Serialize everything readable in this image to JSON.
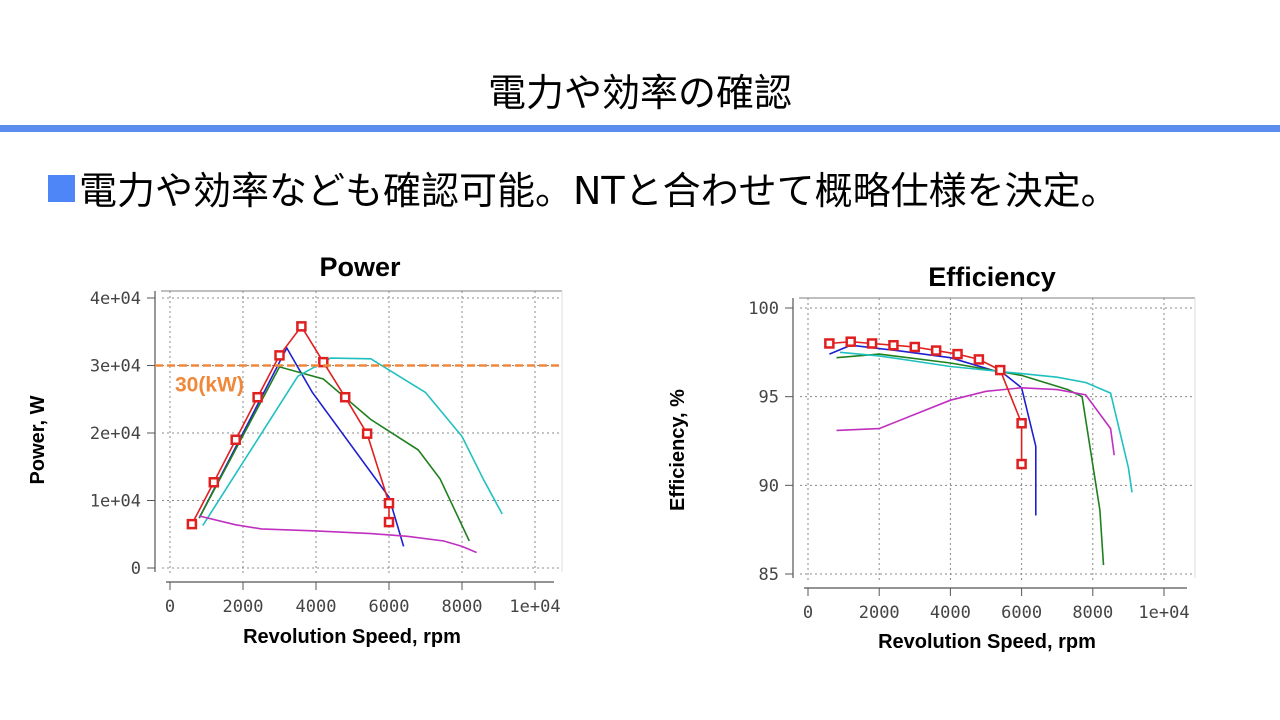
{
  "slide": {
    "title": "電力や効率の確認",
    "bullet": "電力や効率なども確認可能。NTと合わせて概略仕様を決定。"
  },
  "colors": {
    "accent_bar": "#5b8def",
    "bullet_square": "#4f86f7",
    "threshold": "#f0883a"
  },
  "chart_data": [
    {
      "type": "line",
      "title": "Power",
      "xlabel": "Revolution Speed, rpm",
      "ylabel": "Power, W",
      "xlim": [
        0,
        10000
      ],
      "ylim": [
        0,
        40000
      ],
      "xticks": [
        "0",
        "2000",
        "4000",
        "6000",
        "8000",
        "1e+04"
      ],
      "yticks": [
        "0",
        "1e+04",
        "2e+04",
        "3e+04",
        "4e+04"
      ],
      "grid": true,
      "annotation": {
        "y": 30000,
        "label": "30(kW)",
        "color": "#f0883a"
      },
      "series": [
        {
          "color": "#e02020",
          "markers": true,
          "x": [
            600,
            1200,
            1800,
            2400,
            3000,
            3600,
            4200,
            4800,
            5400,
            6000,
            6000
          ],
          "y": [
            6500,
            12700,
            19000,
            25300,
            31500,
            35800,
            30500,
            25300,
            19900,
            9600,
            6800
          ]
        },
        {
          "color": "#2020d0",
          "markers": false,
          "x": [
            800,
            3200,
            3900,
            6000,
            6400
          ],
          "y": [
            7400,
            32600,
            26000,
            10500,
            3200
          ]
        },
        {
          "color": "#208020",
          "markers": false,
          "x": [
            800,
            3000,
            4200,
            5500,
            6800,
            7400,
            8200
          ],
          "y": [
            7400,
            29800,
            28000,
            22000,
            17500,
            13200,
            4000
          ]
        },
        {
          "color": "#20c0c0",
          "markers": false,
          "x": [
            900,
            3500,
            4400,
            5500,
            7000,
            8000,
            8600,
            9100
          ],
          "y": [
            6300,
            28400,
            31100,
            31000,
            26000,
            19500,
            13000,
            8000
          ]
        },
        {
          "color": "#c030c0",
          "markers": false,
          "x": [
            800,
            1800,
            2500,
            4000,
            5500,
            6500,
            7500,
            8000,
            8400
          ],
          "y": [
            7700,
            6400,
            5800,
            5500,
            5100,
            4700,
            4000,
            3200,
            2300
          ]
        }
      ]
    },
    {
      "type": "line",
      "title": "Efficiency",
      "xlabel": "Revolution Speed, rpm",
      "ylabel": "Efficiency, %",
      "xlim": [
        0,
        10000
      ],
      "ylim": [
        85,
        100
      ],
      "xticks": [
        "0",
        "2000",
        "4000",
        "6000",
        "8000",
        "1e+04"
      ],
      "yticks": [
        "85",
        "90",
        "95",
        "100"
      ],
      "grid": true,
      "series": [
        {
          "color": "#e02020",
          "markers": true,
          "x": [
            600,
            1200,
            1800,
            2400,
            3000,
            3600,
            4200,
            4800,
            5400,
            6000,
            6000
          ],
          "y": [
            98.0,
            98.1,
            98.0,
            97.9,
            97.8,
            97.6,
            97.4,
            97.1,
            96.5,
            93.5,
            91.2
          ]
        },
        {
          "color": "#2020d0",
          "markers": false,
          "x": [
            600,
            1200,
            2500,
            4000,
            5500,
            6000,
            6400,
            6400
          ],
          "y": [
            97.4,
            97.9,
            97.6,
            97.2,
            96.3,
            95.5,
            92.2,
            88.3
          ]
        },
        {
          "color": "#208020",
          "markers": false,
          "x": [
            800,
            2000,
            4000,
            6000,
            7300,
            7700,
            8200,
            8300
          ],
          "y": [
            97.2,
            97.4,
            96.9,
            96.2,
            95.4,
            95.0,
            88.6,
            85.5
          ]
        },
        {
          "color": "#20c0c0",
          "markers": false,
          "x": [
            900,
            2000,
            4000,
            6000,
            7000,
            7800,
            8500,
            9000,
            9100
          ],
          "y": [
            97.5,
            97.3,
            96.7,
            96.3,
            96.1,
            95.8,
            95.2,
            91.0,
            89.6
          ]
        },
        {
          "color": "#c030c0",
          "markers": false,
          "x": [
            800,
            2000,
            3000,
            4000,
            5000,
            6000,
            7000,
            7800,
            8500,
            8600
          ],
          "y": [
            93.1,
            93.2,
            94.0,
            94.8,
            95.3,
            95.5,
            95.4,
            95.1,
            93.2,
            91.7
          ]
        }
      ]
    }
  ]
}
